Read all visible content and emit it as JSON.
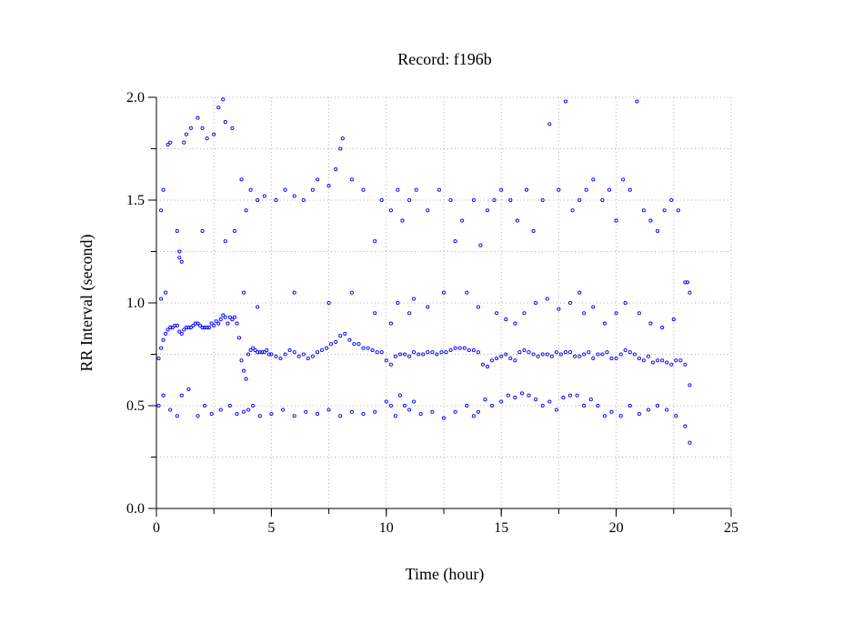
{
  "chart_data": {
    "type": "scatter",
    "title": "Record:  f196b",
    "xlabel": "Time (hour)",
    "ylabel": "RR Interval (second)",
    "xlim": [
      0,
      25
    ],
    "ylim": [
      0,
      2
    ],
    "xticks": [
      0,
      5,
      10,
      15,
      20,
      25
    ],
    "xtick_labels": [
      "0",
      "5",
      "10",
      "15",
      "20",
      "25"
    ],
    "yticks": [
      0,
      0.5,
      1.0,
      1.5,
      2.0
    ],
    "ytick_labels": [
      "0.0",
      "0.5",
      "1.0",
      "1.5",
      "2.0"
    ],
    "grid": true,
    "legend": "none",
    "marker_color": "#0000ff",
    "series": [
      {
        "x": [
          0.1,
          0.2,
          0.3,
          0.4,
          0.5,
          0.6,
          0.7,
          0.8,
          0.9,
          1.0,
          1.1,
          1.2,
          1.3,
          1.4,
          1.5,
          1.6,
          1.7,
          1.8,
          1.9,
          2.0,
          2.1,
          2.2,
          2.3,
          2.4,
          2.5,
          2.6,
          2.7,
          2.8,
          2.9,
          3.0,
          3.1,
          3.2,
          3.3,
          3.4,
          3.5,
          3.6,
          3.7,
          3.8,
          3.9,
          4.0,
          4.1,
          4.2,
          4.3,
          4.4,
          4.5,
          4.6,
          4.7,
          4.8,
          4.9,
          5.0,
          5.2,
          5.4,
          5.6,
          5.8,
          6.0,
          6.2,
          6.4,
          6.6,
          6.8,
          7.0,
          7.2,
          7.4,
          7.6,
          7.8,
          8.0,
          8.2,
          8.4,
          8.6,
          8.8,
          9.0,
          9.2,
          9.4,
          9.6,
          9.8,
          10.0,
          10.2,
          10.4,
          10.6,
          10.8,
          11.0,
          11.2,
          11.4,
          11.6,
          11.8,
          12.0,
          12.2,
          12.4,
          12.6,
          12.8,
          13.0,
          13.2,
          13.4,
          13.6,
          13.8,
          14.0,
          14.2,
          14.4,
          14.6,
          14.8,
          15.0,
          15.2,
          15.4,
          15.6,
          15.8,
          16.0,
          16.2,
          16.4,
          16.6,
          16.8,
          17.0,
          17.2,
          17.4,
          17.6,
          17.8,
          18.0,
          18.2,
          18.4,
          18.6,
          18.8,
          19.0,
          19.2,
          19.4,
          19.6,
          19.8,
          20.0,
          20.2,
          20.4,
          20.6,
          20.8,
          21.0,
          21.2,
          21.4,
          21.6,
          21.8,
          22.0,
          22.2,
          22.4,
          22.6,
          22.8,
          23.0,
          23.2
        ],
        "y": [
          0.73,
          0.78,
          0.82,
          0.85,
          0.87,
          0.88,
          0.88,
          0.89,
          0.89,
          0.86,
          0.85,
          0.87,
          0.88,
          0.88,
          0.88,
          0.89,
          0.9,
          0.9,
          0.89,
          0.88,
          0.88,
          0.88,
          0.88,
          0.9,
          0.89,
          0.91,
          0.9,
          0.92,
          0.94,
          0.93,
          0.9,
          0.93,
          0.92,
          0.93,
          0.9,
          0.83,
          0.72,
          0.67,
          0.63,
          0.75,
          0.77,
          0.78,
          0.77,
          0.76,
          0.76,
          0.76,
          0.76,
          0.77,
          0.75,
          0.75,
          0.74,
          0.73,
          0.75,
          0.77,
          0.76,
          0.74,
          0.75,
          0.73,
          0.74,
          0.76,
          0.77,
          0.78,
          0.8,
          0.81,
          0.84,
          0.85,
          0.82,
          0.8,
          0.8,
          0.78,
          0.78,
          0.77,
          0.76,
          0.76,
          0.72,
          0.7,
          0.74,
          0.75,
          0.75,
          0.74,
          0.76,
          0.75,
          0.75,
          0.76,
          0.76,
          0.75,
          0.76,
          0.76,
          0.77,
          0.78,
          0.78,
          0.78,
          0.77,
          0.77,
          0.76,
          0.7,
          0.69,
          0.72,
          0.73,
          0.74,
          0.75,
          0.73,
          0.72,
          0.76,
          0.77,
          0.76,
          0.75,
          0.74,
          0.75,
          0.75,
          0.74,
          0.76,
          0.75,
          0.76,
          0.76,
          0.74,
          0.74,
          0.75,
          0.76,
          0.73,
          0.75,
          0.75,
          0.76,
          0.73,
          0.73,
          0.75,
          0.77,
          0.76,
          0.75,
          0.73,
          0.72,
          0.74,
          0.71,
          0.72,
          0.72,
          0.71,
          0.7,
          0.72,
          0.72,
          0.7,
          0.6
        ]
      },
      {
        "x": [
          0.2,
          0.3,
          0.5,
          0.6,
          0.9,
          1.0,
          1.1,
          1.2,
          1.3,
          1.5,
          1.8,
          2.0,
          2.2,
          2.5,
          2.7,
          2.9,
          3.0,
          3.3,
          3.4,
          3.7,
          3.9,
          4.1,
          4.4,
          4.7,
          5.2,
          5.6,
          6.0,
          6.4,
          6.8,
          7.0,
          7.5,
          7.8,
          8.0,
          8.1,
          8.5,
          9.0,
          9.5,
          9.8,
          10.2,
          10.5,
          10.7,
          11.0,
          11.3,
          11.8,
          12.3,
          12.8,
          13.0,
          13.3,
          13.8,
          14.1,
          14.4,
          14.7,
          15.0,
          15.4,
          15.7,
          16.1,
          16.4,
          16.8,
          17.1,
          17.5,
          17.8,
          18.1,
          18.4,
          18.7,
          19.0,
          19.4,
          19.7,
          20.0,
          20.3,
          20.6,
          20.9,
          21.2,
          21.5,
          21.8,
          22.1,
          22.4,
          22.7,
          23.0,
          23.2
        ],
        "y": [
          1.45,
          1.55,
          1.77,
          1.78,
          1.35,
          1.22,
          1.2,
          1.78,
          1.82,
          1.85,
          1.9,
          1.85,
          1.8,
          1.82,
          1.95,
          1.99,
          1.88,
          1.85,
          1.35,
          1.6,
          1.45,
          1.55,
          1.5,
          1.52,
          1.5,
          1.55,
          1.52,
          1.5,
          1.55,
          1.6,
          1.57,
          1.65,
          1.75,
          1.8,
          1.6,
          1.55,
          1.3,
          1.5,
          1.45,
          1.55,
          1.4,
          1.5,
          1.55,
          1.45,
          1.55,
          1.5,
          1.3,
          1.4,
          1.5,
          1.28,
          1.45,
          1.5,
          1.55,
          1.5,
          1.4,
          1.55,
          1.35,
          1.5,
          1.87,
          1.55,
          1.98,
          1.45,
          1.5,
          1.55,
          1.6,
          1.5,
          1.55,
          1.4,
          1.6,
          1.55,
          1.98,
          1.45,
          1.4,
          1.35,
          1.45,
          1.5,
          1.45,
          1.1,
          1.05
        ]
      },
      {
        "x": [
          0.1,
          0.3,
          0.6,
          0.9,
          1.1,
          1.4,
          1.8,
          2.1,
          2.4,
          2.8,
          3.2,
          3.5,
          3.8,
          4.0,
          4.2,
          4.5,
          5.0,
          5.5,
          6.0,
          6.5,
          7.0,
          7.5,
          8.0,
          8.5,
          9.0,
          9.5,
          10.0,
          10.2,
          10.4,
          10.6,
          10.8,
          11.0,
          11.2,
          11.5,
          12.0,
          12.5,
          13.0,
          13.5,
          13.8,
          14.0,
          14.3,
          14.6,
          15.0,
          15.3,
          15.6,
          15.9,
          16.2,
          16.5,
          16.8,
          17.1,
          17.4,
          17.7,
          18.0,
          18.3,
          18.6,
          18.9,
          19.2,
          19.5,
          19.8,
          20.2,
          20.6,
          21.0,
          21.4,
          21.8,
          22.2,
          22.6,
          23.0,
          23.2
        ],
        "y": [
          0.5,
          0.55,
          0.48,
          0.45,
          0.55,
          0.58,
          0.45,
          0.5,
          0.46,
          0.48,
          0.5,
          0.46,
          0.47,
          0.48,
          0.5,
          0.45,
          0.46,
          0.48,
          0.45,
          0.47,
          0.46,
          0.48,
          0.45,
          0.47,
          0.46,
          0.47,
          0.52,
          0.5,
          0.45,
          0.55,
          0.5,
          0.48,
          0.52,
          0.46,
          0.47,
          0.44,
          0.47,
          0.5,
          0.45,
          0.47,
          0.53,
          0.5,
          0.52,
          0.55,
          0.54,
          0.56,
          0.55,
          0.53,
          0.5,
          0.52,
          0.48,
          0.54,
          0.55,
          0.55,
          0.5,
          0.53,
          0.5,
          0.45,
          0.47,
          0.45,
          0.5,
          0.46,
          0.48,
          0.5,
          0.48,
          0.45,
          0.4,
          0.32
        ]
      },
      {
        "x": [
          0.2,
          0.4,
          1.0,
          2.0,
          3.0,
          3.8,
          4.4,
          6.0,
          7.5,
          8.5,
          9.5,
          10.2,
          10.5,
          11.0,
          11.2,
          11.8,
          12.5,
          13.5,
          14.0,
          14.8,
          15.2,
          15.6,
          16.0,
          16.5,
          17.0,
          17.5,
          18.0,
          18.4,
          18.6,
          19.0,
          19.5,
          20.0,
          20.4,
          21.0,
          21.5,
          22.0,
          22.5,
          23.1
        ],
        "y": [
          1.02,
          1.05,
          1.25,
          1.35,
          1.3,
          1.05,
          0.98,
          1.05,
          1.0,
          1.05,
          0.95,
          0.9,
          1.0,
          0.95,
          1.02,
          0.98,
          1.05,
          1.05,
          0.98,
          0.95,
          0.92,
          0.9,
          0.95,
          1.0,
          1.02,
          0.97,
          1.0,
          1.05,
          0.95,
          0.98,
          0.9,
          0.95,
          1.0,
          0.95,
          0.9,
          0.88,
          0.92,
          1.1
        ]
      }
    ]
  }
}
